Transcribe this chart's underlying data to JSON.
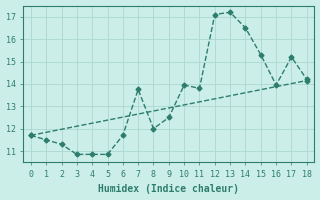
{
  "title": "",
  "xlabel": "Humidex (Indice chaleur)",
  "background_color": "#cceee8",
  "line_color": "#2d7d6e",
  "grid_color": "#aad8d0",
  "xlim": [
    -0.5,
    18.5
  ],
  "ylim": [
    10.5,
    17.5
  ],
  "xticks": [
    0,
    1,
    2,
    3,
    4,
    5,
    6,
    7,
    8,
    9,
    10,
    11,
    12,
    13,
    14,
    15,
    16,
    17,
    18
  ],
  "yticks": [
    11,
    12,
    13,
    14,
    15,
    16,
    17
  ],
  "series1_x": [
    0,
    1,
    2,
    3,
    4,
    5,
    6,
    7,
    8,
    9,
    10,
    11,
    12,
    13,
    14,
    15,
    16,
    17,
    18
  ],
  "series1_y": [
    11.7,
    11.5,
    11.3,
    10.85,
    10.85,
    10.85,
    11.7,
    13.75,
    12.0,
    12.5,
    13.95,
    13.8,
    17.1,
    17.2,
    16.5,
    15.3,
    13.95,
    15.2,
    14.2
  ],
  "series2_x": [
    0,
    18
  ],
  "series2_y": [
    11.7,
    14.15
  ],
  "font_family": "monospace",
  "tick_fontsize": 6,
  "label_fontsize": 7,
  "marker_size": 2.5,
  "line_width": 1.0
}
